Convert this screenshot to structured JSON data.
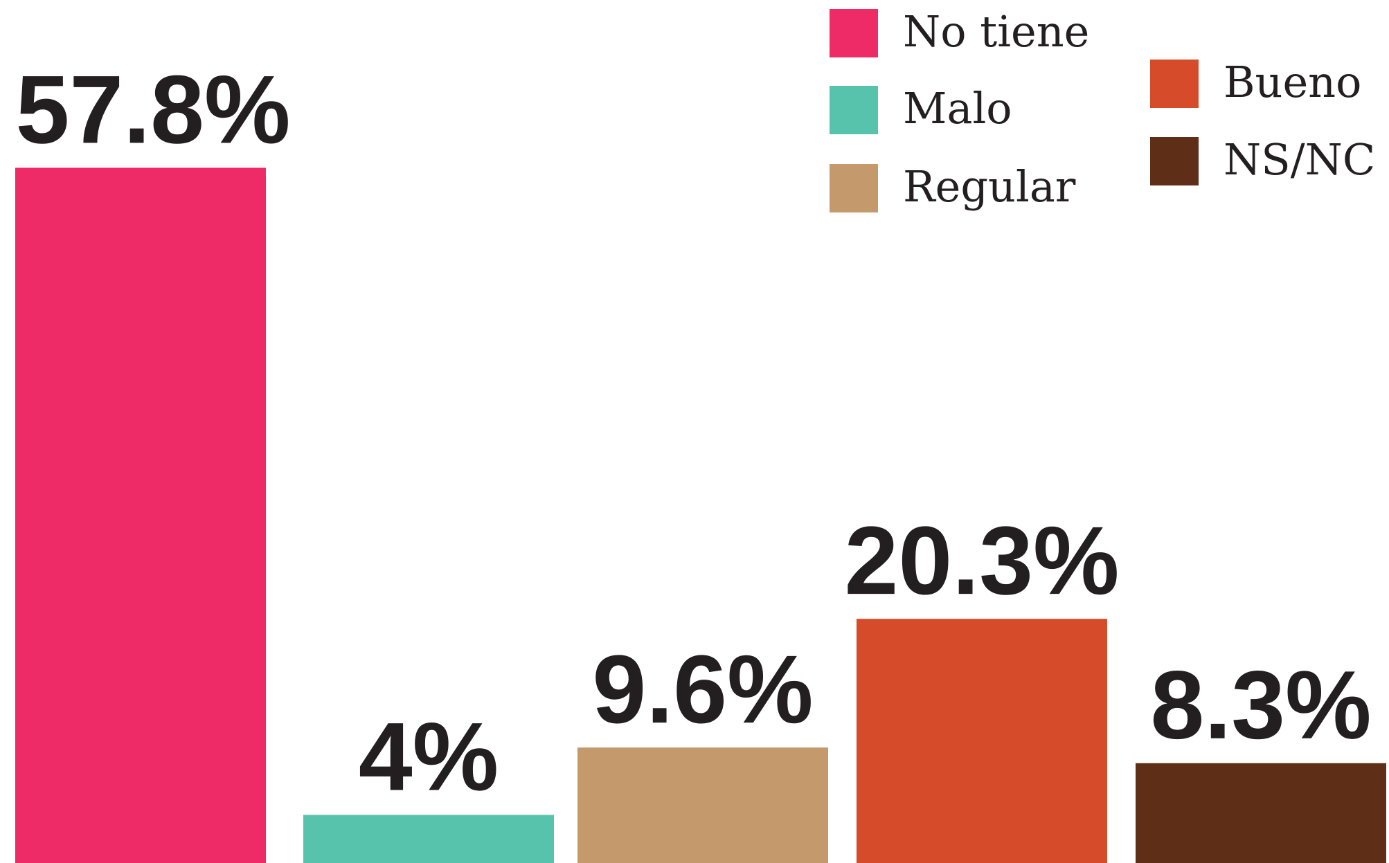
{
  "chart_data": {
    "type": "bar",
    "categories": [
      "No tiene",
      "Malo",
      "Regular",
      "Bueno",
      "NS/NC"
    ],
    "values": [
      57.8,
      4,
      9.6,
      20.3,
      8.3
    ],
    "value_labels": [
      "57.8%",
      "4%",
      "9.6%",
      "20.3%",
      "8.3%"
    ],
    "colors": [
      "#ee2a67",
      "#58c3ad",
      "#c49a6c",
      "#d64c2b",
      "#5e2e17"
    ]
  }
}
